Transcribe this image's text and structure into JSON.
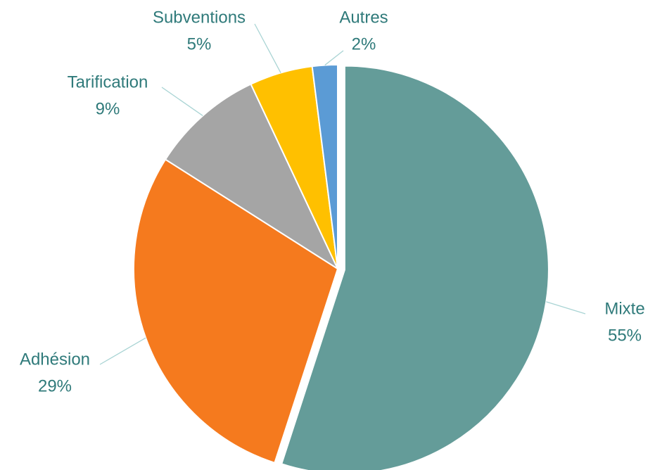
{
  "chart_data": {
    "type": "pie",
    "categories": [
      "Mixte",
      "Adhésion",
      "Tarification",
      "Subventions",
      "Autres"
    ],
    "values": [
      55,
      29,
      9,
      5,
      2
    ],
    "value_labels": [
      "55%",
      "29%",
      "9%",
      "5%",
      "2%"
    ],
    "colors": [
      "#649c99",
      "#f57a1e",
      "#a5a5a5",
      "#ffc000",
      "#5b9bd5"
    ]
  }
}
